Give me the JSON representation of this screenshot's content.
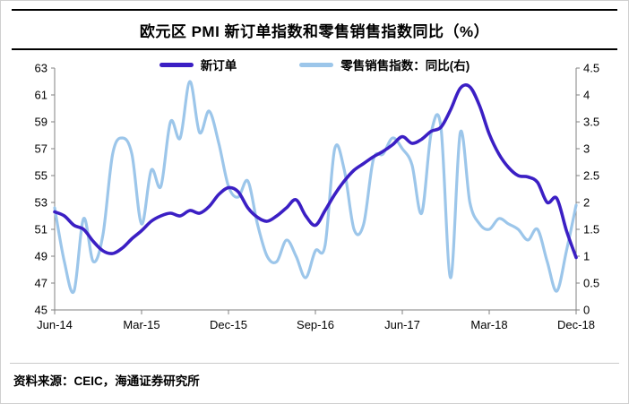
{
  "title": "欧元区 PMI 新订单指数和零售销售指数同比（%）",
  "source": "资料来源：CEIC，海通证券研究所",
  "chart_data": {
    "type": "line",
    "frequency": "monthly",
    "x_start": "Jun-14",
    "x_end": "Dec-18",
    "x_tick_labels": [
      "Jun-14",
      "Mar-15",
      "Dec-15",
      "Sep-16",
      "Jun-17",
      "Mar-18",
      "Dec-18"
    ],
    "x_tick_indices": [
      0,
      9,
      18,
      27,
      36,
      45,
      54
    ],
    "left_axis": {
      "min": 45,
      "max": 63,
      "ticks": [
        45,
        47,
        49,
        51,
        53,
        55,
        57,
        59,
        61,
        63
      ]
    },
    "right_axis": {
      "min": 0,
      "max": 4.5,
      "ticks": [
        0,
        0.5,
        1,
        1.5,
        2,
        2.5,
        3,
        3.5,
        4,
        4.5
      ]
    },
    "grid": false,
    "legend_position": "top-center",
    "series": [
      {
        "name": "新订单",
        "axis": "left",
        "color": "#3b1fc4",
        "line_width": 3.6,
        "values": [
          52.3,
          52.0,
          51.3,
          51.0,
          50.1,
          49.4,
          49.2,
          49.6,
          50.3,
          50.9,
          51.6,
          52.0,
          52.2,
          52.0,
          52.4,
          52.2,
          52.7,
          53.6,
          54.1,
          53.8,
          52.6,
          51.9,
          51.6,
          52.0,
          52.6,
          53.2,
          52.0,
          51.3,
          52.4,
          53.6,
          54.6,
          55.4,
          55.9,
          56.4,
          56.8,
          57.3,
          57.9,
          57.4,
          57.7,
          58.3,
          58.6,
          59.9,
          61.5,
          61.6,
          60.2,
          58.1,
          56.6,
          55.6,
          55.0,
          54.9,
          54.5,
          53.0,
          53.3,
          50.9,
          48.9
        ]
      },
      {
        "name": "零售销售指数：同比(右)",
        "axis": "right",
        "color": "#9cc6ea",
        "line_width": 3.2,
        "values": [
          1.9,
          0.9,
          0.35,
          1.7,
          0.9,
          1.4,
          2.9,
          3.2,
          2.9,
          1.6,
          2.6,
          2.3,
          3.5,
          3.2,
          4.25,
          3.3,
          3.7,
          3.1,
          2.3,
          2.1,
          2.4,
          1.6,
          1.0,
          0.9,
          1.3,
          1.0,
          0.6,
          1.1,
          1.2,
          3.0,
          2.6,
          1.5,
          1.6,
          2.8,
          2.9,
          3.2,
          3.0,
          2.7,
          1.8,
          3.3,
          3.4,
          0.6,
          3.3,
          2.0,
          1.6,
          1.5,
          1.7,
          1.6,
          1.5,
          1.3,
          1.5,
          0.9,
          0.35,
          1.1,
          1.95
        ]
      }
    ]
  }
}
